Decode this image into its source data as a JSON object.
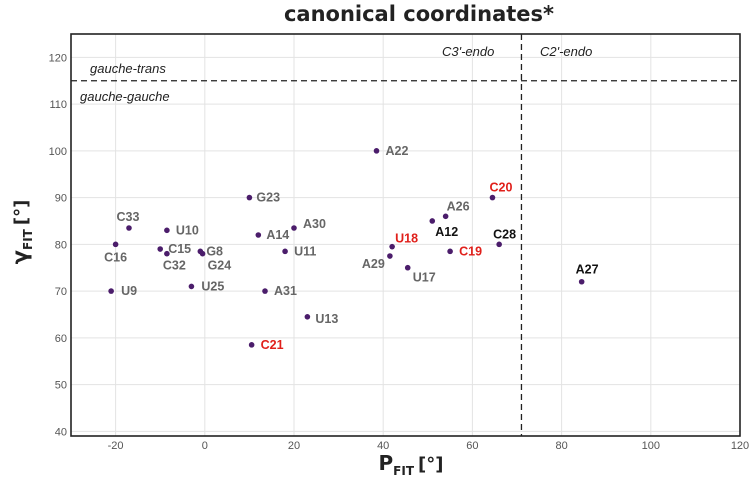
{
  "chart_data": {
    "type": "scatter",
    "title": "canonical coordinates*",
    "xlabel": {
      "main": "P",
      "sub": "FIT",
      "unit": "[°]"
    },
    "ylabel": {
      "main": "γ",
      "sub": "FIT",
      "unit": "[°]"
    },
    "xlim": [
      -30,
      120
    ],
    "ylim": [
      39,
      125
    ],
    "xticks": [
      -20,
      0,
      20,
      40,
      60,
      80,
      100,
      120
    ],
    "yticks": [
      40,
      50,
      60,
      70,
      80,
      90,
      100,
      110,
      120
    ],
    "grid": true,
    "dividers": {
      "horizontal_y": 115,
      "vertical_x": 71
    },
    "regions": [
      "gauche-trans",
      "gauche-gauche",
      "C3'-endo",
      "C2'-endo"
    ],
    "colors": {
      "point": "#4b1d6b",
      "gray": "#666666",
      "red": "#e0201b",
      "black": "#111111"
    },
    "points": [
      {
        "label": "C33",
        "x": -17,
        "y": 83.5,
        "color": "gray"
      },
      {
        "label": "C16",
        "x": -20,
        "y": 80,
        "color": "gray"
      },
      {
        "label": "U10",
        "x": -8.5,
        "y": 83,
        "color": "gray"
      },
      {
        "label": "C15",
        "x": -10,
        "y": 79,
        "color": "gray"
      },
      {
        "label": "C32",
        "x": -8.5,
        "y": 78,
        "color": "gray"
      },
      {
        "label": "G8",
        "x": -1,
        "y": 78.5,
        "color": "gray"
      },
      {
        "label": "G24",
        "x": -0.5,
        "y": 78,
        "color": "gray"
      },
      {
        "label": "U9",
        "x": -21,
        "y": 70,
        "color": "gray"
      },
      {
        "label": "U25",
        "x": -3,
        "y": 71,
        "color": "gray"
      },
      {
        "label": "G23",
        "x": 10,
        "y": 90,
        "color": "gray"
      },
      {
        "label": "A14",
        "x": 12,
        "y": 82,
        "color": "gray"
      },
      {
        "label": "A30",
        "x": 20,
        "y": 83.5,
        "color": "gray"
      },
      {
        "label": "U11",
        "x": 18,
        "y": 78.5,
        "color": "gray"
      },
      {
        "label": "A31",
        "x": 13.5,
        "y": 70,
        "color": "gray"
      },
      {
        "label": "U13",
        "x": 23,
        "y": 64.5,
        "color": "gray"
      },
      {
        "label": "C21",
        "x": 10.5,
        "y": 58.5,
        "color": "red"
      },
      {
        "label": "A22",
        "x": 38.5,
        "y": 100,
        "color": "gray"
      },
      {
        "label": "U18",
        "x": 42,
        "y": 79.5,
        "color": "red"
      },
      {
        "label": "A29",
        "x": 41.5,
        "y": 77.5,
        "color": "gray"
      },
      {
        "label": "U17",
        "x": 45.5,
        "y": 75,
        "color": "gray"
      },
      {
        "label": "C19",
        "x": 55,
        "y": 78.5,
        "color": "red"
      },
      {
        "label": "A12",
        "x": 51,
        "y": 85,
        "color": "black"
      },
      {
        "label": "A26",
        "x": 54,
        "y": 86,
        "color": "gray"
      },
      {
        "label": "C20",
        "x": 64.5,
        "y": 90,
        "color": "red"
      },
      {
        "label": "C28",
        "x": 66,
        "y": 80,
        "color": "black"
      },
      {
        "label": "A27",
        "x": 84.5,
        "y": 72,
        "color": "black"
      }
    ]
  }
}
